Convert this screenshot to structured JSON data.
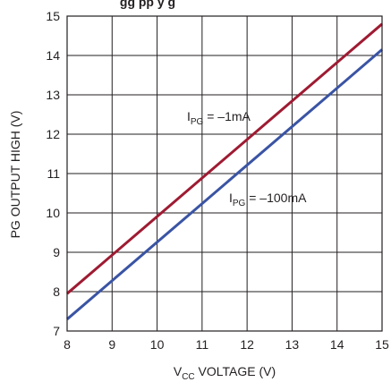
{
  "chart_data": {
    "type": "line",
    "title": "gg   pp y   g",
    "xlabel": {
      "main": "V",
      "sub": "CC",
      "rest": " VOLTAGE (V)"
    },
    "ylabel": "PG OUTPUT HIGH (V)",
    "xlim": [
      8,
      15
    ],
    "ylim": [
      7,
      15
    ],
    "xticks": [
      "8",
      "9",
      "10",
      "11",
      "12",
      "13",
      "14",
      "15"
    ],
    "yticks": [
      "7",
      "8",
      "9",
      "10",
      "11",
      "12",
      "13",
      "14",
      "15"
    ],
    "grid": true,
    "series": [
      {
        "name": {
          "main": "I",
          "sub": "PG",
          "rest": " = –1mA"
        },
        "color": "#9e1b32",
        "x": [
          8,
          15
        ],
        "y": [
          7.95,
          14.8
        ]
      },
      {
        "name": {
          "main": "I",
          "sub": "PG",
          "rest": " = –100mA"
        },
        "color": "#3a54a4",
        "x": [
          8,
          15
        ],
        "y": [
          7.3,
          14.15
        ]
      }
    ]
  }
}
